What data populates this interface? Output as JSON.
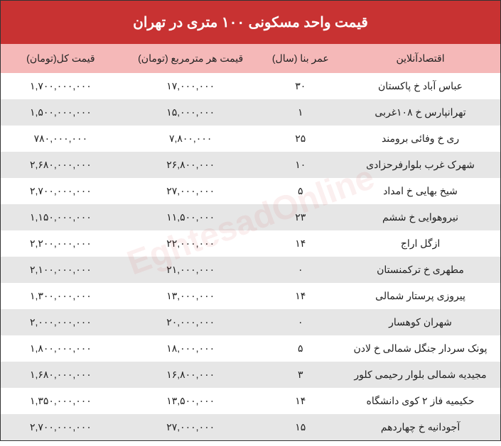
{
  "title": "قیمت واحد مسکونی ۱۰۰ متری در تهران",
  "columns": {
    "location": "اقتصادآنلاین",
    "age": "عمر بنا (سال)",
    "price_per_m": "قیمت هر مترمربع (تومان)",
    "total_price": "قیمت کل(تومان)"
  },
  "rows": [
    {
      "location": "عباس آباد خ پاکستان",
      "age": "۳۰",
      "price_per_m": "۱۷,۰۰۰,۰۰۰",
      "total_price": "۱,۷۰۰,۰۰۰,۰۰۰"
    },
    {
      "location": "تهرانپارس خ ۱۰۸غربی",
      "age": "۱",
      "price_per_m": "۱۵,۰۰۰,۰۰۰",
      "total_price": "۱,۵۰۰,۰۰۰,۰۰۰"
    },
    {
      "location": "ری خ وفائی برومند",
      "age": "۲۵",
      "price_per_m": "۷,۸۰۰,۰۰۰",
      "total_price": "۷۸۰,۰۰۰,۰۰۰"
    },
    {
      "location": "شهرک غرب بلوارفرحزادی",
      "age": "۱۰",
      "price_per_m": "۲۶,۸۰۰,۰۰۰",
      "total_price": "۲,۶۸۰,۰۰۰,۰۰۰"
    },
    {
      "location": "شیخ بهایی خ امداد",
      "age": "۵",
      "price_per_m": "۲۷,۰۰۰,۰۰۰",
      "total_price": "۲,۷۰۰,۰۰۰,۰۰۰"
    },
    {
      "location": "نیروهوایی خ ششم",
      "age": "۲۳",
      "price_per_m": "۱۱,۵۰۰,۰۰۰",
      "total_price": "۱,۱۵۰,۰۰۰,۰۰۰"
    },
    {
      "location": "ازگل اراج",
      "age": "۱۴",
      "price_per_m": "۲۲,۰۰۰,۰۰۰",
      "total_price": "۲,۲۰۰,۰۰۰,۰۰۰"
    },
    {
      "location": "مطهری خ ترکمنستان",
      "age": "۰",
      "price_per_m": "۲۱,۰۰۰,۰۰۰",
      "total_price": "۲,۱۰۰,۰۰۰,۰۰۰"
    },
    {
      "location": "پیروزی پرستار شمالی",
      "age": "۱۴",
      "price_per_m": "۱۳,۰۰۰,۰۰۰",
      "total_price": "۱,۳۰۰,۰۰۰,۰۰۰"
    },
    {
      "location": "شهران کوهسار",
      "age": "۰",
      "price_per_m": "۲۰,۰۰۰,۰۰۰",
      "total_price": "۲,۰۰۰,۰۰۰,۰۰۰"
    },
    {
      "location": "پونک سردار جنگل شمالی خ لادن",
      "age": "۵",
      "price_per_m": "۱۸,۰۰۰,۰۰۰",
      "total_price": "۱,۸۰۰,۰۰۰,۰۰۰"
    },
    {
      "location": "مجیدیه شمالی بلوار رحیمی کلور",
      "age": "۳",
      "price_per_m": "۱۶,۸۰۰,۰۰۰",
      "total_price": "۱,۶۸۰,۰۰۰,۰۰۰"
    },
    {
      "location": "حکیمیه فاز ۲ کوی دانشگاه",
      "age": "۱۴",
      "price_per_m": "۱۳,۵۰۰,۰۰۰",
      "total_price": "۱,۳۵۰,۰۰۰,۰۰۰"
    },
    {
      "location": "آجودانیه خ چهاردهم",
      "age": "۱۵",
      "price_per_m": "۲۷,۰۰۰,۰۰۰",
      "total_price": "۲,۷۰۰,۰۰۰,۰۰۰"
    }
  ],
  "watermark": "EghtesadOnline",
  "colors": {
    "title_bg": "#c83232",
    "title_fg": "#ffffff",
    "header_bg": "#f5b8b8",
    "row_odd": "#ffffff",
    "row_even": "#e6e6e6",
    "text": "#222222"
  }
}
